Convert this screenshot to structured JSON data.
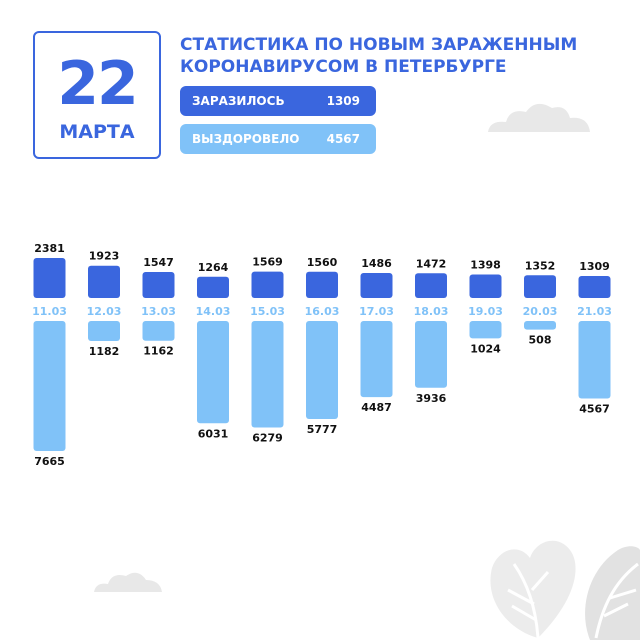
{
  "date": {
    "day": "22",
    "month": "МАРТА"
  },
  "title": {
    "line1": "СТАТИСТИКА ПО НОВЫМ ЗАРАЖЕННЫМ",
    "line2": "КОРОНАВИРУСОМ В ПЕТЕРБУРГЕ"
  },
  "legend": {
    "infected": {
      "label": "ЗАРАЗИЛОСЬ",
      "value": "1309"
    },
    "recovered": {
      "label": "ВЫЗДОРОВЕЛО",
      "value": "4567"
    }
  },
  "colors": {
    "infected": "#3a66de",
    "recovered": "#80c2f8",
    "decor": "#e8e8e8"
  },
  "chart_data": {
    "type": "bar",
    "categories": [
      "11.03",
      "12.03",
      "13.03",
      "14.03",
      "15.03",
      "16.03",
      "17.03",
      "18.03",
      "19.03",
      "20.03",
      "21.03"
    ],
    "series": [
      {
        "name": "ЗАРАЗИЛОСЬ",
        "values": [
          2381,
          1923,
          1547,
          1264,
          1569,
          1560,
          1486,
          1472,
          1398,
          1352,
          1309
        ]
      },
      {
        "name": "ВЫЗДОРОВЕЛО",
        "values": [
          7665,
          1182,
          1162,
          6031,
          6279,
          5777,
          4487,
          3936,
          1024,
          508,
          4567
        ]
      }
    ]
  }
}
